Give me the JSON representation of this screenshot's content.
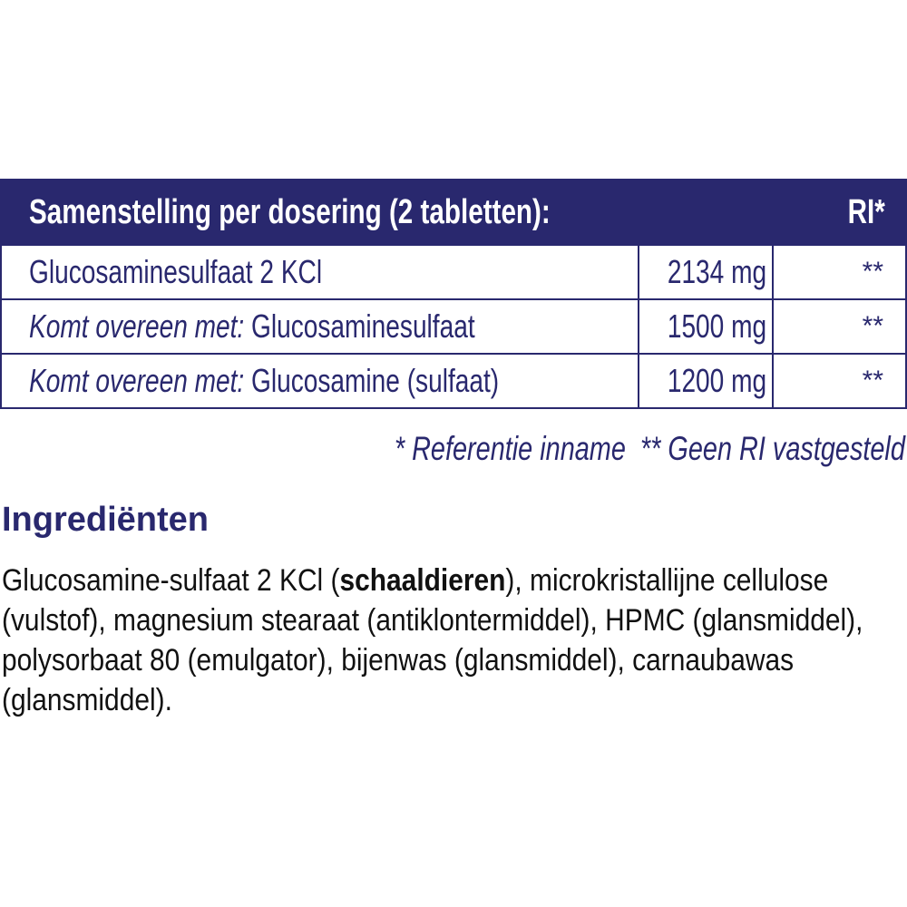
{
  "table": {
    "header": {
      "title": "Samenstelling per dosering (2 tabletten):",
      "ri": "RI*"
    },
    "rows": [
      {
        "prefix": "",
        "name": "Glucosaminesulfaat 2 KCl",
        "amount": "2134 mg",
        "ri": "**"
      },
      {
        "prefix": "Komt overeen met:",
        "name": " Glucosaminesulfaat",
        "amount": "1500 mg",
        "ri": "**"
      },
      {
        "prefix": "Komt overeen met:",
        "name": " Glucosamine (sulfaat)",
        "amount": "1200 mg",
        "ri": "**"
      }
    ]
  },
  "footnote": "* Referentie inname  ** Geen RI vastgesteld",
  "ingredients": {
    "heading": "Ingrediënten",
    "lines": [
      {
        "before": "Glucosamine-sulfaat 2 KCl (",
        "bold": "schaaldieren",
        "after": "), microkristallijne cellulose"
      },
      {
        "text": "(vulstof), magnesium stearaat (antiklontermiddel), HPMC (glansmiddel),"
      },
      {
        "text": "polysorbaat 80 (emulgator), bijenwas (glansmiddel), carnaubawas"
      },
      {
        "text": "(glansmiddel)."
      }
    ]
  },
  "colors": {
    "brand_navy": "#29286e"
  }
}
